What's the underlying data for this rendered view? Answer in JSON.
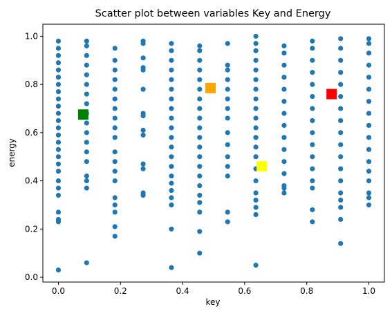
{
  "chart_data": {
    "type": "scatter",
    "title": "Scatter plot between variables Key and Energy",
    "xlabel": "key",
    "ylabel": "energy",
    "xlim": [
      -0.05,
      1.05
    ],
    "ylim": [
      -0.02,
      1.05
    ],
    "xticks": [
      "0.0",
      "0.2",
      "0.4",
      "0.6",
      "0.8",
      "1.0"
    ],
    "yticks": [
      "0.0",
      "0.2",
      "0.4",
      "0.6",
      "0.8",
      "1.0"
    ],
    "grid": false,
    "legend": "none",
    "colors": {
      "points": "#1f77b4",
      "highlight_1": "#008000",
      "highlight_2": "#ffa500",
      "highlight_3": "#ffff00",
      "highlight_4": "#ff0000"
    },
    "columns": [
      {
        "key": 0.0,
        "energy": [
          0.03,
          0.23,
          0.24,
          0.27,
          0.34,
          0.37,
          0.4,
          0.44,
          0.47,
          0.5,
          0.53,
          0.56,
          0.59,
          0.62,
          0.65,
          0.68,
          0.71,
          0.74,
          0.77,
          0.8,
          0.83,
          0.86,
          0.89,
          0.92,
          0.95,
          0.98
        ]
      },
      {
        "key": 0.091,
        "energy": [
          0.06,
          0.37,
          0.4,
          0.42,
          0.48,
          0.52,
          0.56,
          0.6,
          0.64,
          0.68,
          0.72,
          0.76,
          0.8,
          0.84,
          0.88,
          0.92,
          0.96,
          0.98
        ]
      },
      {
        "key": 0.182,
        "energy": [
          0.17,
          0.21,
          0.27,
          0.3,
          0.33,
          0.4,
          0.44,
          0.48,
          0.52,
          0.58,
          0.62,
          0.66,
          0.7,
          0.74,
          0.78,
          0.82,
          0.86,
          0.9,
          0.95
        ]
      },
      {
        "key": 0.273,
        "energy": [
          0.34,
          0.35,
          0.45,
          0.47,
          0.59,
          0.61,
          0.67,
          0.68,
          0.78,
          0.86,
          0.87,
          0.91,
          0.97,
          0.98
        ]
      },
      {
        "key": 0.364,
        "energy": [
          0.04,
          0.2,
          0.3,
          0.33,
          0.36,
          0.39,
          0.42,
          0.46,
          0.5,
          0.54,
          0.58,
          0.62,
          0.66,
          0.7,
          0.74,
          0.78,
          0.82,
          0.86,
          0.9,
          0.94,
          0.97
        ]
      },
      {
        "key": 0.455,
        "energy": [
          0.1,
          0.19,
          0.27,
          0.31,
          0.34,
          0.38,
          0.42,
          0.46,
          0.5,
          0.54,
          0.58,
          0.62,
          0.66,
          0.7,
          0.74,
          0.78,
          0.82,
          0.86,
          0.9,
          0.94,
          0.96
        ]
      },
      {
        "key": 0.545,
        "energy": [
          0.23,
          0.27,
          0.42,
          0.46,
          0.5,
          0.55,
          0.6,
          0.66,
          0.7,
          0.74,
          0.78,
          0.82,
          0.86,
          0.88,
          0.97
        ]
      },
      {
        "key": 0.636,
        "energy": [
          0.05,
          0.26,
          0.29,
          0.32,
          0.35,
          0.4,
          0.45,
          0.5,
          0.54,
          0.58,
          0.62,
          0.66,
          0.7,
          0.74,
          0.78,
          0.82,
          0.86,
          0.9,
          0.94,
          0.97,
          1.0
        ]
      },
      {
        "key": 0.727,
        "energy": [
          0.35,
          0.37,
          0.38,
          0.43,
          0.48,
          0.53,
          0.58,
          0.63,
          0.68,
          0.73,
          0.78,
          0.83,
          0.88,
          0.93,
          0.96
        ]
      },
      {
        "key": 0.818,
        "energy": [
          0.23,
          0.28,
          0.37,
          0.4,
          0.45,
          0.5,
          0.55,
          0.6,
          0.65,
          0.7,
          0.75,
          0.8,
          0.85,
          0.9,
          0.95,
          0.98
        ]
      },
      {
        "key": 0.909,
        "energy": [
          0.14,
          0.24,
          0.29,
          0.32,
          0.35,
          0.4,
          0.45,
          0.5,
          0.55,
          0.6,
          0.65,
          0.7,
          0.75,
          0.8,
          0.85,
          0.9,
          0.95,
          0.99
        ]
      },
      {
        "key": 1.0,
        "energy": [
          0.3,
          0.33,
          0.35,
          0.4,
          0.44,
          0.48,
          0.53,
          0.58,
          0.63,
          0.68,
          0.73,
          0.78,
          0.83,
          0.88,
          0.93,
          0.97,
          0.99
        ]
      }
    ],
    "highlights": [
      {
        "key": 0.08,
        "energy": 0.675,
        "color": "#008000"
      },
      {
        "key": 0.49,
        "energy": 0.785,
        "color": "#ffa500"
      },
      {
        "key": 0.655,
        "energy": 0.46,
        "color": "#ffff00"
      },
      {
        "key": 0.88,
        "energy": 0.76,
        "color": "#ff0000"
      }
    ]
  }
}
